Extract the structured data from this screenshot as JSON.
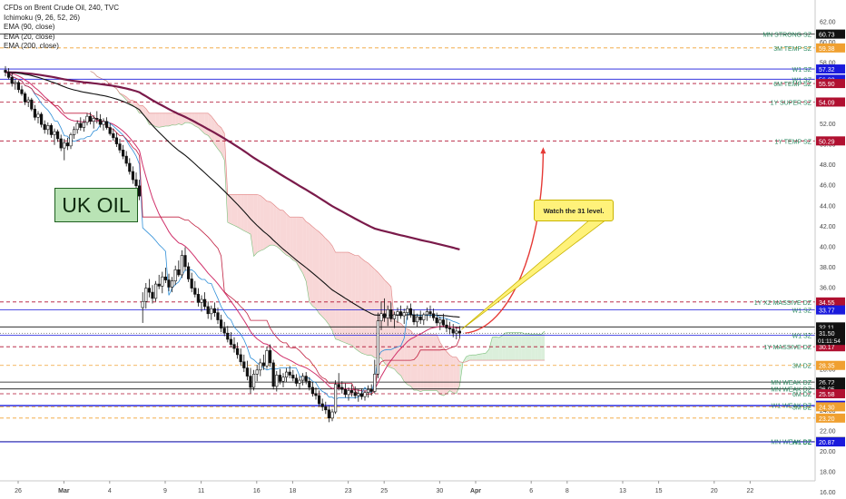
{
  "title": "CFDs on Brent Crude Oil, 240, TVC",
  "indicators": [
    "Ichimoku (9, 26, 52, 26)",
    "EMA (90, close)",
    "EMA (20, close)",
    "EMA (200, close)"
  ],
  "note_box": "UK OIL",
  "callout": "Watch the 31 level.",
  "colors": {
    "up": "#ffffff",
    "down": "#111111",
    "ema200": "#7a1a4a",
    "ema90": "#111111",
    "ema20": "#d0306a",
    "tenkan": "#2f8fd8",
    "kijun": "#c02040",
    "cloud_bear": "#f6c9c9",
    "cloud_bull": "#cfe9cf",
    "projection": "#e53935"
  },
  "chart_data": {
    "type": "candlestick",
    "title": "CFDs on Brent Crude Oil, 240, TVC",
    "ylim": [
      16,
      63
    ],
    "y_ticks": [
      62,
      60,
      58,
      56,
      54,
      52,
      50,
      48,
      46,
      44,
      42,
      40,
      38,
      36,
      34,
      32,
      30,
      28,
      26,
      24,
      22,
      20,
      18,
      16
    ],
    "x_ticks": [
      "26",
      "Mar",
      "4",
      "9",
      "11",
      "16",
      "18",
      "23",
      "25",
      "30",
      "Apr",
      "6",
      "8",
      "13",
      "15",
      "20",
      "22"
    ],
    "x_tick_index": [
      0,
      14,
      28,
      45,
      56,
      73,
      84,
      101,
      112,
      129,
      140,
      157,
      168,
      185,
      196,
      213,
      224
    ],
    "price_levels": [
      {
        "label": "MN STRONG SZ",
        "value": 60.73,
        "price_tag": "60.73",
        "color": "#111111",
        "style": "solid",
        "label_color": "#2a8a60"
      },
      {
        "label": "3M TEMP SZ",
        "value": 59.38,
        "price_tag": "59.38",
        "color": "#f0a030",
        "style": "dashed",
        "label_color": "#2a8a60"
      },
      {
        "label": "W1 SZ",
        "value": 57.32,
        "price_tag": "57.32",
        "color": "#1a1adc",
        "style": "solid",
        "label_color": "#2a8a60"
      },
      {
        "label": "W1 SZ",
        "value": 56.32,
        "price_tag": "56.32",
        "color": "#1a1adc",
        "style": "solid",
        "label_color": "#2a8a60"
      },
      {
        "label": "6M TEMP SZ",
        "value": 55.9,
        "price_tag": "55.90",
        "color": "#b01030",
        "style": "dashed",
        "label_color": "#2a8a60"
      },
      {
        "label": "1Y SUPER SZ",
        "value": 54.09,
        "price_tag": "54.09",
        "color": "#b01030",
        "style": "dashed",
        "label_color": "#2a8a60"
      },
      {
        "label": "1Y TEMP SZ",
        "value": 50.29,
        "price_tag": "50.29",
        "color": "#b01030",
        "style": "dashed",
        "label_color": "#2a8a60"
      },
      {
        "label": "1Y X2 MASSIVE DZ",
        "value": 34.55,
        "price_tag": "34.55",
        "color": "#b01030",
        "style": "dashed",
        "label_color": "#2a8a60"
      },
      {
        "label": "W1 SZ",
        "value": 33.77,
        "price_tag": "33.77",
        "color": "#1a1adc",
        "style": "solid",
        "label_color": "#2a8a60"
      },
      {
        "label": "",
        "value": 32.11,
        "price_tag": "32.11",
        "color": "#111111",
        "style": "solid",
        "label_color": "#2a8a60"
      },
      {
        "label": "W1 SZ",
        "value": 31.3,
        "price_tag": "31.30",
        "color": "#1a1adc",
        "style": "solid",
        "label_color": "#2a8a60"
      },
      {
        "label": "1Y MASSIVE DZ",
        "value": 30.17,
        "price_tag": "30.17",
        "color": "#b01030",
        "style": "dashed",
        "label_color": "#2a8a60"
      },
      {
        "label": "3M DZ",
        "value": 28.35,
        "price_tag": "28.35",
        "color": "#f0a030",
        "style": "dashed",
        "label_color": "#2a8a60"
      },
      {
        "label": "MN WEAK DZ",
        "value": 26.72,
        "price_tag": "26.72",
        "color": "#111111",
        "style": "solid",
        "label_color": "#2a8a60"
      },
      {
        "label": "MN WEAK DZ",
        "value": 26.05,
        "price_tag": "26.05",
        "color": "#111111",
        "style": "solid",
        "label_color": "#2a8a60"
      },
      {
        "label": "6M DZ",
        "value": 25.58,
        "price_tag": "25.58",
        "color": "#b01030",
        "style": "dashed",
        "label_color": "#2a8a60"
      },
      {
        "label": "W1 WEAK DZ",
        "value": 24.45,
        "price_tag": "24.45",
        "color": "#1a1adc",
        "style": "solid",
        "label_color": "#2a8a60"
      },
      {
        "label": "",
        "value": 24.39,
        "price_tag": "24.39",
        "color": "#1a1adc",
        "style": "solid",
        "label_color": "#2a8a60"
      },
      {
        "label": "3M DZ",
        "value": 24.3,
        "price_tag": "24.30",
        "color": "#f0a030",
        "style": "dashed",
        "label_color": "#2a8a60"
      },
      {
        "label": "",
        "value": 23.2,
        "price_tag": "23.20",
        "color": "#f0a030",
        "style": "dashed",
        "label_color": "#2a8a60"
      },
      {
        "label": "MN WEAK DZ",
        "value": 20.9,
        "price_tag": "20.90",
        "color": "#111111",
        "style": "solid",
        "label_color": "#2a8a60"
      },
      {
        "label": "W1 DZ",
        "value": 20.87,
        "price_tag": "20.87",
        "color": "#1a1adc",
        "style": "solid",
        "label_color": "#2a8a60"
      }
    ],
    "current_price": {
      "value": 31.5,
      "tag": "31.50",
      "countdown": "01:11:54"
    },
    "candles": [
      [
        57.2,
        57.6,
        56.6,
        57.0
      ],
      [
        57.0,
        57.4,
        56.3,
        56.5
      ],
      [
        56.5,
        56.9,
        55.6,
        55.9
      ],
      [
        55.9,
        56.3,
        55.3,
        56.0
      ],
      [
        56.0,
        56.2,
        55.0,
        55.3
      ],
      [
        55.3,
        55.7,
        54.7,
        54.9
      ],
      [
        54.9,
        55.1,
        53.8,
        54.1
      ],
      [
        54.1,
        54.6,
        53.6,
        54.3
      ],
      [
        54.3,
        54.5,
        53.2,
        53.4
      ],
      [
        53.4,
        53.8,
        52.3,
        52.6
      ],
      [
        52.6,
        53.2,
        52.0,
        52.9
      ],
      [
        52.9,
        53.1,
        51.6,
        51.9
      ],
      [
        51.9,
        52.3,
        51.0,
        51.4
      ],
      [
        51.4,
        52.1,
        50.9,
        51.8
      ],
      [
        51.8,
        52.0,
        50.6,
        50.9
      ],
      [
        50.9,
        51.5,
        49.9,
        51.2
      ],
      [
        51.2,
        51.4,
        50.2,
        50.5
      ],
      [
        50.5,
        50.9,
        49.3,
        49.6
      ],
      [
        49.6,
        50.5,
        48.4,
        50.1
      ],
      [
        50.1,
        50.6,
        49.4,
        49.8
      ],
      [
        49.8,
        51.1,
        49.5,
        50.9
      ],
      [
        50.9,
        51.7,
        50.5,
        51.4
      ],
      [
        51.4,
        52.3,
        51.0,
        52.0
      ],
      [
        52.0,
        52.6,
        51.3,
        51.6
      ],
      [
        51.6,
        52.4,
        51.2,
        52.1
      ],
      [
        52.1,
        53.0,
        51.8,
        52.7
      ],
      [
        52.7,
        53.1,
        51.9,
        52.2
      ],
      [
        52.2,
        52.8,
        51.5,
        52.5
      ],
      [
        52.5,
        53.2,
        52.0,
        52.4
      ],
      [
        52.4,
        52.9,
        51.6,
        51.9
      ],
      [
        51.9,
        52.5,
        51.3,
        52.2
      ],
      [
        52.2,
        52.6,
        51.4,
        51.6
      ],
      [
        51.6,
        52.0,
        50.8,
        51.0
      ],
      [
        51.0,
        51.5,
        50.3,
        50.6
      ],
      [
        50.6,
        51.1,
        49.7,
        50.0
      ],
      [
        50.0,
        50.5,
        49.1,
        49.4
      ],
      [
        49.4,
        49.9,
        48.5,
        48.8
      ],
      [
        48.8,
        49.3,
        47.8,
        48.1
      ],
      [
        48.1,
        48.6,
        47.0,
        47.3
      ],
      [
        47.3,
        47.8,
        46.1,
        46.5
      ],
      [
        46.5,
        47.2,
        45.6,
        45.9
      ],
      [
        45.9,
        46.5,
        44.5,
        44.9
      ],
      [
        34.0,
        35.5,
        32.5,
        34.6
      ],
      [
        34.6,
        36.4,
        33.9,
        35.9
      ],
      [
        35.9,
        36.8,
        35.0,
        35.5
      ],
      [
        35.5,
        36.2,
        34.4,
        34.9
      ],
      [
        34.9,
        36.6,
        34.6,
        36.3
      ],
      [
        36.3,
        37.2,
        35.8,
        36.1
      ],
      [
        36.1,
        37.5,
        35.4,
        37.0
      ],
      [
        37.0,
        37.9,
        36.4,
        36.7
      ],
      [
        36.7,
        37.3,
        35.6,
        36.0
      ],
      [
        36.0,
        37.0,
        35.5,
        36.6
      ],
      [
        36.6,
        38.1,
        36.2,
        37.7
      ],
      [
        37.7,
        38.6,
        37.0,
        37.2
      ],
      [
        37.2,
        39.6,
        36.9,
        39.1
      ],
      [
        39.1,
        39.9,
        37.6,
        38.0
      ],
      [
        38.0,
        38.4,
        36.5,
        36.8
      ],
      [
        36.8,
        37.4,
        35.5,
        35.9
      ],
      [
        35.9,
        36.6,
        35.0,
        35.3
      ],
      [
        35.3,
        35.9,
        34.1,
        34.5
      ],
      [
        34.5,
        35.2,
        33.6,
        34.8
      ],
      [
        34.8,
        35.5,
        33.8,
        34.1
      ],
      [
        34.1,
        34.6,
        32.9,
        33.4
      ],
      [
        33.4,
        34.2,
        32.8,
        33.9
      ],
      [
        33.9,
        34.5,
        33.1,
        33.5
      ],
      [
        33.5,
        34.0,
        32.4,
        32.8
      ],
      [
        32.8,
        33.3,
        31.6,
        32.0
      ],
      [
        32.0,
        32.6,
        31.2,
        31.5
      ],
      [
        31.5,
        32.2,
        30.6,
        30.9
      ],
      [
        30.9,
        31.6,
        30.1,
        30.4
      ],
      [
        30.4,
        31.1,
        29.6,
        30.0
      ],
      [
        30.0,
        30.6,
        29.0,
        29.4
      ],
      [
        29.4,
        30.0,
        28.3,
        28.7
      ],
      [
        28.7,
        29.4,
        27.7,
        28.1
      ],
      [
        28.1,
        28.8,
        26.9,
        27.3
      ],
      [
        27.3,
        28.1,
        25.6,
        26.2
      ],
      [
        26.2,
        27.9,
        25.9,
        27.5
      ],
      [
        27.5,
        28.4,
        26.8,
        27.9
      ],
      [
        27.9,
        29.0,
        27.3,
        28.6
      ],
      [
        28.6,
        29.4,
        27.9,
        28.3
      ],
      [
        28.3,
        30.2,
        28.0,
        29.8
      ],
      [
        29.8,
        30.4,
        28.2,
        28.6
      ],
      [
        28.6,
        28.9,
        26.0,
        26.3
      ],
      [
        26.3,
        27.8,
        25.8,
        27.4
      ],
      [
        27.4,
        28.0,
        26.5,
        26.8
      ],
      [
        26.8,
        27.6,
        26.2,
        27.2
      ],
      [
        27.2,
        28.1,
        26.7,
        27.7
      ],
      [
        27.7,
        28.3,
        27.1,
        27.4
      ],
      [
        27.4,
        27.9,
        26.8,
        27.1
      ],
      [
        27.1,
        27.5,
        26.3,
        26.6
      ],
      [
        26.6,
        27.3,
        26.0,
        26.9
      ],
      [
        26.9,
        27.6,
        26.4,
        27.3
      ],
      [
        27.3,
        27.7,
        26.5,
        26.8
      ],
      [
        26.8,
        27.2,
        25.9,
        26.2
      ],
      [
        26.2,
        26.7,
        25.3,
        25.6
      ],
      [
        25.6,
        26.2,
        25.0,
        25.4
      ],
      [
        25.4,
        25.9,
        24.3,
        24.6
      ],
      [
        24.6,
        25.1,
        23.9,
        24.3
      ],
      [
        24.3,
        24.8,
        23.6,
        24.0
      ],
      [
        24.0,
        24.4,
        22.8,
        23.2
      ],
      [
        23.2,
        24.1,
        22.9,
        23.8
      ],
      [
        23.8,
        26.9,
        23.6,
        26.5
      ],
      [
        26.5,
        27.6,
        25.9,
        26.2
      ],
      [
        26.2,
        26.8,
        25.6,
        26.0
      ],
      [
        26.0,
        26.6,
        25.2,
        25.5
      ],
      [
        25.5,
        26.2,
        24.9,
        25.9
      ],
      [
        25.9,
        26.5,
        25.3,
        25.7
      ],
      [
        25.7,
        26.3,
        25.1,
        25.4
      ],
      [
        25.4,
        26.0,
        24.8,
        25.6
      ],
      [
        25.6,
        26.1,
        25.0,
        25.3
      ],
      [
        25.3,
        25.9,
        24.9,
        25.7
      ],
      [
        25.7,
        26.4,
        25.2,
        26.0
      ],
      [
        26.0,
        26.5,
        25.4,
        25.8
      ],
      [
        25.8,
        28.9,
        25.6,
        27.5
      ],
      [
        27.5,
        33.5,
        27.1,
        32.7
      ],
      [
        32.7,
        34.6,
        31.8,
        33.4
      ],
      [
        33.4,
        34.9,
        32.6,
        33.0
      ],
      [
        33.0,
        34.2,
        32.2,
        33.8
      ],
      [
        33.8,
        34.5,
        32.6,
        32.9
      ],
      [
        32.9,
        33.6,
        32.0,
        33.3
      ],
      [
        33.3,
        34.0,
        32.5,
        33.6
      ],
      [
        33.6,
        34.2,
        32.9,
        33.2
      ],
      [
        33.2,
        33.9,
        32.4,
        33.5
      ],
      [
        33.5,
        34.2,
        32.8,
        33.9
      ],
      [
        33.9,
        34.4,
        33.0,
        33.3
      ],
      [
        33.3,
        33.8,
        32.3,
        32.6
      ],
      [
        32.6,
        33.4,
        32.1,
        33.1
      ],
      [
        33.1,
        33.7,
        32.4,
        32.8
      ],
      [
        32.8,
        33.5,
        32.3,
        33.3
      ],
      [
        33.3,
        34.0,
        32.7,
        33.6
      ],
      [
        33.6,
        34.2,
        33.0,
        33.4
      ],
      [
        33.4,
        33.9,
        32.7,
        33.0
      ],
      [
        33.0,
        33.5,
        32.2,
        32.5
      ],
      [
        32.5,
        33.1,
        31.8,
        32.8
      ],
      [
        32.8,
        33.4,
        32.1,
        32.3
      ],
      [
        32.3,
        32.9,
        31.6,
        32.0
      ],
      [
        32.0,
        32.6,
        31.4,
        31.9
      ],
      [
        31.9,
        32.4,
        31.1,
        31.5
      ],
      [
        31.5,
        32.1,
        30.9,
        31.7
      ],
      [
        31.7,
        32.2,
        31.0,
        31.5
      ]
    ]
  }
}
